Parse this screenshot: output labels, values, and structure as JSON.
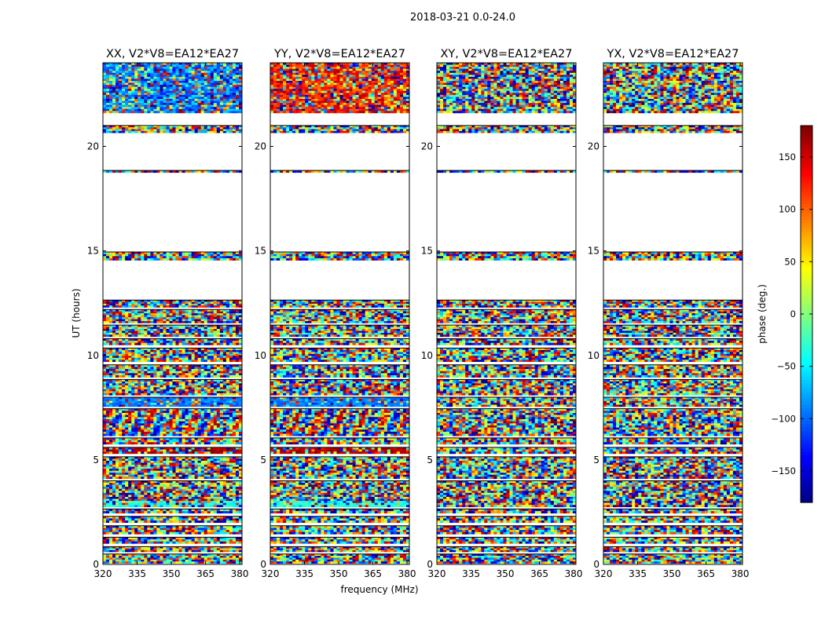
{
  "figure_title": "2018-03-21 0.0-24.0",
  "chart_data": {
    "type": "heatmap",
    "suptitle": "2018-03-21 0.0-24.0",
    "xlabel": "frequency (MHz)",
    "ylabel": "UT (hours)",
    "xlim": [
      320,
      381
    ],
    "ylim": [
      0,
      24
    ],
    "xticks": [
      320,
      335,
      350,
      365,
      380
    ],
    "yticks": [
      0,
      5,
      10,
      15,
      20
    ],
    "panels": [
      {
        "title": "XX, V2*V8=EA12*EA27",
        "pol": "XX"
      },
      {
        "title": "YY, V2*V8=EA12*EA27",
        "pol": "YY"
      },
      {
        "title": "XY, V2*V8=EA12*EA27",
        "pol": "XY"
      },
      {
        "title": "YX, V2*V8=EA12*EA27",
        "pol": "YX"
      }
    ],
    "colorbar": {
      "label": "phase (deg.)",
      "range": [
        -180,
        180
      ],
      "ticks": [
        -150,
        -100,
        -50,
        0,
        50,
        100,
        150
      ],
      "tick_labels": [
        "−150",
        "−100",
        "−50",
        "0",
        "50",
        "100",
        "150"
      ],
      "colormap": "jet"
    },
    "data_segments_hours": [
      [
        0.05,
        0.5
      ],
      [
        0.6,
        0.85
      ],
      [
        1.0,
        1.3
      ],
      [
        1.45,
        1.85
      ],
      [
        2.0,
        2.3
      ],
      [
        2.45,
        2.65
      ],
      [
        2.75,
        4.0
      ],
      [
        4.1,
        5.15
      ],
      [
        5.3,
        5.6
      ],
      [
        5.75,
        6.05
      ],
      [
        6.15,
        7.45
      ],
      [
        7.55,
        8.0
      ],
      [
        8.1,
        8.85
      ],
      [
        8.95,
        9.55
      ],
      [
        9.7,
        10.35
      ],
      [
        10.5,
        10.8
      ],
      [
        10.9,
        11.45
      ],
      [
        11.55,
        12.2
      ],
      [
        12.3,
        12.65
      ],
      [
        14.55,
        14.95
      ],
      [
        18.75,
        18.85
      ],
      [
        20.65,
        21.0
      ],
      [
        21.6,
        24.0
      ]
    ],
    "gap_hours": [
      [
        12.65,
        14.55
      ],
      [
        14.95,
        18.75
      ],
      [
        18.85,
        20.65
      ],
      [
        21.0,
        21.6
      ]
    ]
  }
}
